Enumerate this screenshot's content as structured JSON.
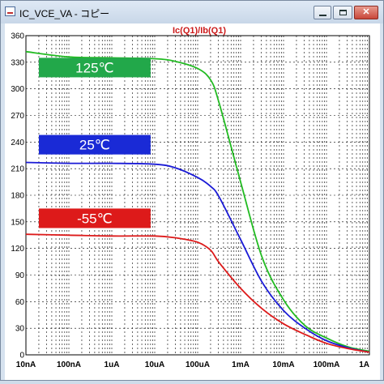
{
  "window": {
    "title": "IC_VCE_VA - コピー",
    "close_glyph": "✕"
  },
  "chart_data": {
    "type": "line",
    "title": "Ic(Q1)/Ib(Q1)",
    "x_scale": "log",
    "x_ticks": [
      {
        "label": "10nA",
        "value": 1e-08
      },
      {
        "label": "100nA",
        "value": 1e-07
      },
      {
        "label": "1uA",
        "value": 1e-06
      },
      {
        "label": "10uA",
        "value": 1e-05
      },
      {
        "label": "100uA",
        "value": 0.0001
      },
      {
        "label": "1mA",
        "value": 0.001
      },
      {
        "label": "10mA",
        "value": 0.01
      },
      {
        "label": "100mA",
        "value": 0.1
      },
      {
        "label": "1A",
        "value": 1
      }
    ],
    "xlim": [
      1e-08,
      1
    ],
    "ylim": [
      0,
      360
    ],
    "y_ticks": [
      0,
      30,
      60,
      90,
      120,
      150,
      180,
      210,
      240,
      270,
      300,
      330,
      360
    ],
    "grid": true,
    "series": [
      {
        "name": "125℃",
        "color": "#22bb22",
        "label_bg": "#22a84a",
        "points": [
          [
            1e-08,
            342
          ],
          [
            1e-07,
            336
          ],
          [
            1e-06,
            335
          ],
          [
            1e-05,
            334
          ],
          [
            3e-05,
            331
          ],
          [
            0.0001,
            323
          ],
          [
            0.0002,
            310
          ],
          [
            0.000316,
            284
          ],
          [
            0.001,
            195
          ],
          [
            0.00316,
            110
          ],
          [
            0.01,
            62
          ],
          [
            0.0316,
            33
          ],
          [
            0.1,
            19
          ],
          [
            0.316,
            9
          ],
          [
            1,
            4
          ]
        ]
      },
      {
        "name": "25℃",
        "color": "#1a1ad6",
        "label_bg": "#1a2ad6",
        "points": [
          [
            1e-08,
            217
          ],
          [
            1e-07,
            216
          ],
          [
            1e-06,
            216
          ],
          [
            1e-05,
            215
          ],
          [
            3e-05,
            211
          ],
          [
            0.0001,
            200
          ],
          [
            0.0002,
            190
          ],
          [
            0.000316,
            178
          ],
          [
            0.001,
            130
          ],
          [
            0.00316,
            82
          ],
          [
            0.01,
            50
          ],
          [
            0.0316,
            30
          ],
          [
            0.1,
            16
          ],
          [
            0.316,
            8
          ],
          [
            1,
            3
          ]
        ]
      },
      {
        "name": "-55℃",
        "color": "#dd1a1a",
        "label_bg": "#dd1a1a",
        "points": [
          [
            1e-08,
            136
          ],
          [
            1e-07,
            135
          ],
          [
            1e-06,
            134
          ],
          [
            1e-05,
            134
          ],
          [
            3e-05,
            132
          ],
          [
            0.0001,
            127
          ],
          [
            0.0002,
            118
          ],
          [
            0.000316,
            104
          ],
          [
            0.001,
            75
          ],
          [
            0.00316,
            52
          ],
          [
            0.01,
            35
          ],
          [
            0.0316,
            23
          ],
          [
            0.1,
            13
          ],
          [
            0.316,
            7
          ],
          [
            1,
            3
          ]
        ]
      }
    ],
    "annotations": [
      {
        "series": 0,
        "text": "125℃",
        "x_left": 2e-08,
        "x_right": 8e-06,
        "y_bottom": 313,
        "y_top": 335
      },
      {
        "series": 1,
        "text": "25℃",
        "x_left": 2e-08,
        "x_right": 8e-06,
        "y_bottom": 226,
        "y_top": 248
      },
      {
        "series": 2,
        "text": "-55℃",
        "x_left": 2e-08,
        "x_right": 8e-06,
        "y_bottom": 143,
        "y_top": 165
      }
    ]
  }
}
